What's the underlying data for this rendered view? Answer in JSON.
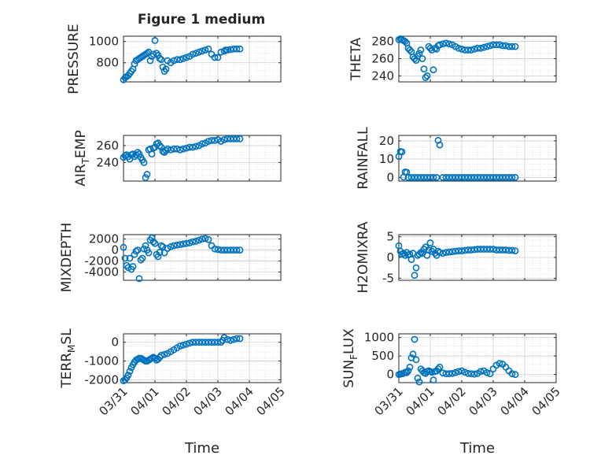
{
  "figure": {
    "title": "Figure 1 medium",
    "xlabel": "Time",
    "xticks": [
      "03/31",
      "04/01",
      "04/02",
      "04/03",
      "04/04",
      "04/05"
    ],
    "marker_color": "#0072bd"
  },
  "chart_data": [
    {
      "type": "scatter",
      "ylabel": "PRESSURE",
      "ylim": [
        620,
        1050
      ],
      "yticks": [
        "800",
        "1000"
      ],
      "ytick_values": [
        800,
        1000
      ],
      "x": [
        0.0,
        0.05,
        0.1,
        0.15,
        0.2,
        0.25,
        0.3,
        0.35,
        0.4,
        0.45,
        0.5,
        0.55,
        0.6,
        0.65,
        0.7,
        0.75,
        0.8,
        0.85,
        0.9,
        0.95,
        1.0,
        1.05,
        1.1,
        1.15,
        1.2,
        1.25,
        1.3,
        1.35,
        1.4,
        1.5,
        1.6,
        1.7,
        1.8,
        1.9,
        2.0,
        2.1,
        2.2,
        2.3,
        2.4,
        2.5,
        2.6,
        2.7,
        2.8,
        2.9,
        3.0,
        3.1,
        3.2,
        3.25,
        3.3,
        3.4,
        3.5,
        3.6,
        3.7
      ],
      "y": [
        640,
        660,
        670,
        680,
        700,
        720,
        740,
        790,
        820,
        830,
        840,
        850,
        860,
        870,
        880,
        890,
        900,
        820,
        860,
        880,
        1010,
        890,
        870,
        840,
        830,
        760,
        720,
        740,
        820,
        800,
        820,
        830,
        830,
        840,
        850,
        860,
        880,
        890,
        900,
        910,
        920,
        930,
        880,
        850,
        850,
        900,
        910,
        920,
        920,
        925,
        930,
        930,
        930
      ]
    },
    {
      "type": "scatter",
      "ylabel": "THETA",
      "ylim": [
        233,
        286
      ],
      "yticks": [
        "240",
        "260",
        "280"
      ],
      "ytick_values": [
        240,
        260,
        280
      ],
      "x": [
        0.0,
        0.05,
        0.1,
        0.15,
        0.2,
        0.25,
        0.3,
        0.35,
        0.4,
        0.45,
        0.5,
        0.55,
        0.6,
        0.65,
        0.7,
        0.75,
        0.8,
        0.85,
        0.9,
        0.95,
        1.0,
        1.05,
        1.1,
        1.15,
        1.2,
        1.25,
        1.3,
        1.4,
        1.5,
        1.6,
        1.7,
        1.8,
        1.9,
        2.0,
        2.1,
        2.2,
        2.3,
        2.4,
        2.5,
        2.6,
        2.7,
        2.8,
        2.9,
        3.0,
        3.1,
        3.2,
        3.3,
        3.4,
        3.5,
        3.6,
        3.7
      ],
      "y": [
        282,
        283,
        282,
        281,
        280,
        278,
        272,
        270,
        268,
        262,
        260,
        258,
        263,
        266,
        270,
        260,
        248,
        238,
        240,
        274,
        272,
        270,
        247,
        272,
        271,
        275,
        276,
        277,
        278,
        277,
        276,
        274,
        272,
        271,
        270,
        270,
        270,
        271,
        272,
        272,
        273,
        274,
        275,
        276,
        276,
        276,
        275,
        275,
        274,
        274,
        274
      ]
    },
    {
      "type": "scatter",
      "ylabel": "AIR_TEMP",
      "ylim": [
        218,
        272
      ],
      "yticks": [
        "240",
        "260"
      ],
      "ytick_values": [
        240,
        260
      ],
      "x": [
        0.0,
        0.05,
        0.1,
        0.15,
        0.2,
        0.25,
        0.3,
        0.35,
        0.4,
        0.45,
        0.5,
        0.55,
        0.6,
        0.65,
        0.7,
        0.75,
        0.8,
        0.85,
        0.9,
        0.95,
        1.0,
        1.05,
        1.1,
        1.15,
        1.2,
        1.25,
        1.3,
        1.35,
        1.4,
        1.5,
        1.6,
        1.7,
        1.8,
        1.9,
        2.0,
        2.1,
        2.2,
        2.3,
        2.4,
        2.5,
        2.6,
        2.7,
        2.8,
        2.9,
        3.0,
        3.1,
        3.2,
        3.3,
        3.4,
        3.5,
        3.6,
        3.7
      ],
      "y": [
        246,
        248,
        249,
        247,
        244,
        249,
        250,
        247,
        249,
        252,
        250,
        246,
        243,
        240,
        222,
        226,
        255,
        256,
        250,
        257,
        258,
        262,
        263,
        260,
        258,
        253,
        252,
        254,
        256,
        255,
        256,
        256,
        255,
        256,
        257,
        258,
        258,
        259,
        260,
        262,
        263,
        265,
        266,
        266,
        267,
        265,
        267,
        268,
        268,
        268,
        268,
        268
      ]
    },
    {
      "type": "scatter",
      "ylabel": "RAINFALL",
      "ylim": [
        -2,
        23
      ],
      "yticks": [
        "0",
        "10",
        "20"
      ],
      "ytick_values": [
        0,
        10,
        20
      ],
      "x": [
        0.0,
        0.05,
        0.1,
        0.15,
        0.2,
        0.25,
        0.3,
        0.4,
        0.5,
        0.6,
        0.7,
        0.8,
        0.9,
        1.0,
        1.1,
        1.2,
        1.25,
        1.3,
        1.4,
        1.5,
        1.6,
        1.7,
        1.8,
        1.9,
        2.0,
        2.1,
        2.2,
        2.3,
        2.4,
        2.5,
        2.6,
        2.7,
        2.8,
        2.9,
        3.0,
        3.1,
        3.2,
        3.3,
        3.4,
        3.5,
        3.6,
        3.7
      ],
      "y": [
        11.5,
        14.2,
        14.0,
        0.2,
        3.0,
        2.8,
        0,
        0,
        0,
        0,
        0,
        0,
        0,
        0,
        0,
        0,
        20.3,
        17.8,
        0,
        0,
        0,
        0,
        0,
        0,
        0,
        0,
        0,
        0,
        0,
        0,
        0,
        0,
        0,
        0,
        0,
        0,
        0,
        0,
        0,
        0,
        0,
        0
      ]
    },
    {
      "type": "scatter",
      "ylabel": "MIXDEPTH",
      "ylim": [
        -5500,
        2800
      ],
      "yticks": [
        "-4000",
        "-2000",
        "0",
        "2000"
      ],
      "ytick_values": [
        -4000,
        -2000,
        0,
        2000
      ],
      "x": [
        0.0,
        0.05,
        0.1,
        0.15,
        0.2,
        0.25,
        0.3,
        0.35,
        0.4,
        0.45,
        0.5,
        0.55,
        0.6,
        0.65,
        0.7,
        0.75,
        0.8,
        0.85,
        0.9,
        0.95,
        1.0,
        1.05,
        1.1,
        1.15,
        1.2,
        1.25,
        1.3,
        1.4,
        1.5,
        1.6,
        1.7,
        1.8,
        1.9,
        2.0,
        2.1,
        2.2,
        2.3,
        2.4,
        2.5,
        2.6,
        2.7,
        2.8,
        2.9,
        3.0,
        3.1,
        3.2,
        3.3,
        3.4,
        3.5,
        3.6,
        3.7
      ],
      "y": [
        500,
        -1500,
        -2800,
        -3200,
        -1500,
        -3500,
        -3000,
        -800,
        -200,
        0,
        -5200,
        -1800,
        -1500,
        200,
        800,
        0,
        -500,
        1800,
        2200,
        1500,
        1200,
        -800,
        -1200,
        -400,
        800,
        600,
        -500,
        300,
        600,
        800,
        900,
        1000,
        1100,
        1200,
        1300,
        1500,
        1600,
        1800,
        2000,
        2100,
        1900,
        800,
        200,
        100,
        0,
        0,
        0,
        0,
        0,
        0,
        0
      ]
    },
    {
      "type": "scatter",
      "ylabel": "H2OMIXRA",
      "ylim": [
        -5.5,
        5.5
      ],
      "yticks": [
        "-5",
        "0",
        "5"
      ],
      "ytick_values": [
        -5,
        0,
        5
      ],
      "x": [
        0.0,
        0.05,
        0.1,
        0.15,
        0.2,
        0.25,
        0.3,
        0.35,
        0.4,
        0.45,
        0.5,
        0.55,
        0.6,
        0.65,
        0.7,
        0.75,
        0.8,
        0.85,
        0.9,
        0.95,
        1.0,
        1.05,
        1.1,
        1.15,
        1.2,
        1.25,
        1.3,
        1.4,
        1.5,
        1.6,
        1.7,
        1.8,
        1.9,
        2.0,
        2.1,
        2.2,
        2.3,
        2.4,
        2.5,
        2.6,
        2.7,
        2.8,
        2.9,
        3.0,
        3.1,
        3.2,
        3.3,
        3.4,
        3.5,
        3.6,
        3.7
      ],
      "y": [
        2.8,
        1.5,
        0.8,
        1.0,
        0.5,
        1.2,
        0.6,
        0.8,
        -0.5,
        1.0,
        -4.3,
        -2.5,
        0.5,
        0.8,
        1.2,
        1.0,
        2.0,
        2.5,
        0.5,
        1.8,
        3.5,
        1.5,
        2.0,
        1.0,
        0.5,
        1.5,
        1.2,
        1.0,
        1.2,
        1.3,
        1.4,
        1.5,
        1.6,
        1.6,
        1.7,
        1.8,
        1.8,
        1.9,
        2.0,
        2.0,
        2.0,
        2.0,
        2.0,
        2.0,
        1.8,
        1.8,
        1.8,
        1.8,
        1.7,
        1.7,
        1.6
      ]
    },
    {
      "type": "scatter",
      "ylabel": "TERR_MSL",
      "ylim": [
        -2150,
        450
      ],
      "yticks": [
        "-2000",
        "-1000",
        "0"
      ],
      "ytick_values": [
        -2000,
        -1000,
        0
      ],
      "x": [
        0.0,
        0.05,
        0.1,
        0.15,
        0.2,
        0.25,
        0.3,
        0.35,
        0.4,
        0.45,
        0.5,
        0.55,
        0.6,
        0.65,
        0.7,
        0.75,
        0.8,
        0.85,
        0.9,
        0.95,
        1.0,
        1.05,
        1.1,
        1.15,
        1.2,
        1.3,
        1.4,
        1.5,
        1.6,
        1.7,
        1.8,
        1.9,
        2.0,
        2.1,
        2.2,
        2.3,
        2.4,
        2.5,
        2.6,
        2.7,
        2.8,
        2.9,
        3.0,
        3.1,
        3.15,
        3.2,
        3.3,
        3.4,
        3.5,
        3.6,
        3.7
      ],
      "y": [
        -2050,
        -2000,
        -1900,
        -1750,
        -1550,
        -1350,
        -1200,
        -1050,
        -950,
        -900,
        -850,
        -850,
        -900,
        -950,
        -1000,
        -1000,
        -950,
        -900,
        -850,
        -800,
        -850,
        -950,
        -900,
        -800,
        -700,
        -650,
        -600,
        -500,
        -400,
        -300,
        -200,
        -150,
        -100,
        -50,
        0,
        0,
        0,
        0,
        0,
        0,
        0,
        0,
        0,
        0,
        100,
        250,
        150,
        100,
        150,
        200,
        200
      ]
    },
    {
      "type": "scatter",
      "ylabel": "SUN_FLUX",
      "ylim": [
        -220,
        1100
      ],
      "yticks": [
        "0",
        "500",
        "1000"
      ],
      "ytick_values": [
        0,
        500,
        1000
      ],
      "x": [
        0.0,
        0.05,
        0.1,
        0.15,
        0.2,
        0.25,
        0.3,
        0.35,
        0.4,
        0.45,
        0.5,
        0.55,
        0.6,
        0.65,
        0.7,
        0.75,
        0.8,
        0.85,
        0.9,
        0.95,
        1.0,
        1.05,
        1.1,
        1.15,
        1.2,
        1.25,
        1.3,
        1.4,
        1.5,
        1.6,
        1.7,
        1.8,
        1.9,
        2.0,
        2.1,
        2.2,
        2.3,
        2.4,
        2.5,
        2.6,
        2.7,
        2.8,
        2.9,
        3.0,
        3.1,
        3.2,
        3.3,
        3.4,
        3.5,
        3.6,
        3.7
      ],
      "y": [
        0,
        10,
        20,
        30,
        60,
        50,
        100,
        200,
        450,
        550,
        950,
        400,
        -100,
        -200,
        150,
        100,
        50,
        30,
        80,
        100,
        80,
        60,
        -150,
        80,
        100,
        150,
        200,
        40,
        20,
        20,
        30,
        50,
        80,
        100,
        60,
        30,
        20,
        10,
        30,
        80,
        100,
        50,
        20,
        150,
        250,
        300,
        280,
        200,
        100,
        20,
        0
      ]
    }
  ]
}
